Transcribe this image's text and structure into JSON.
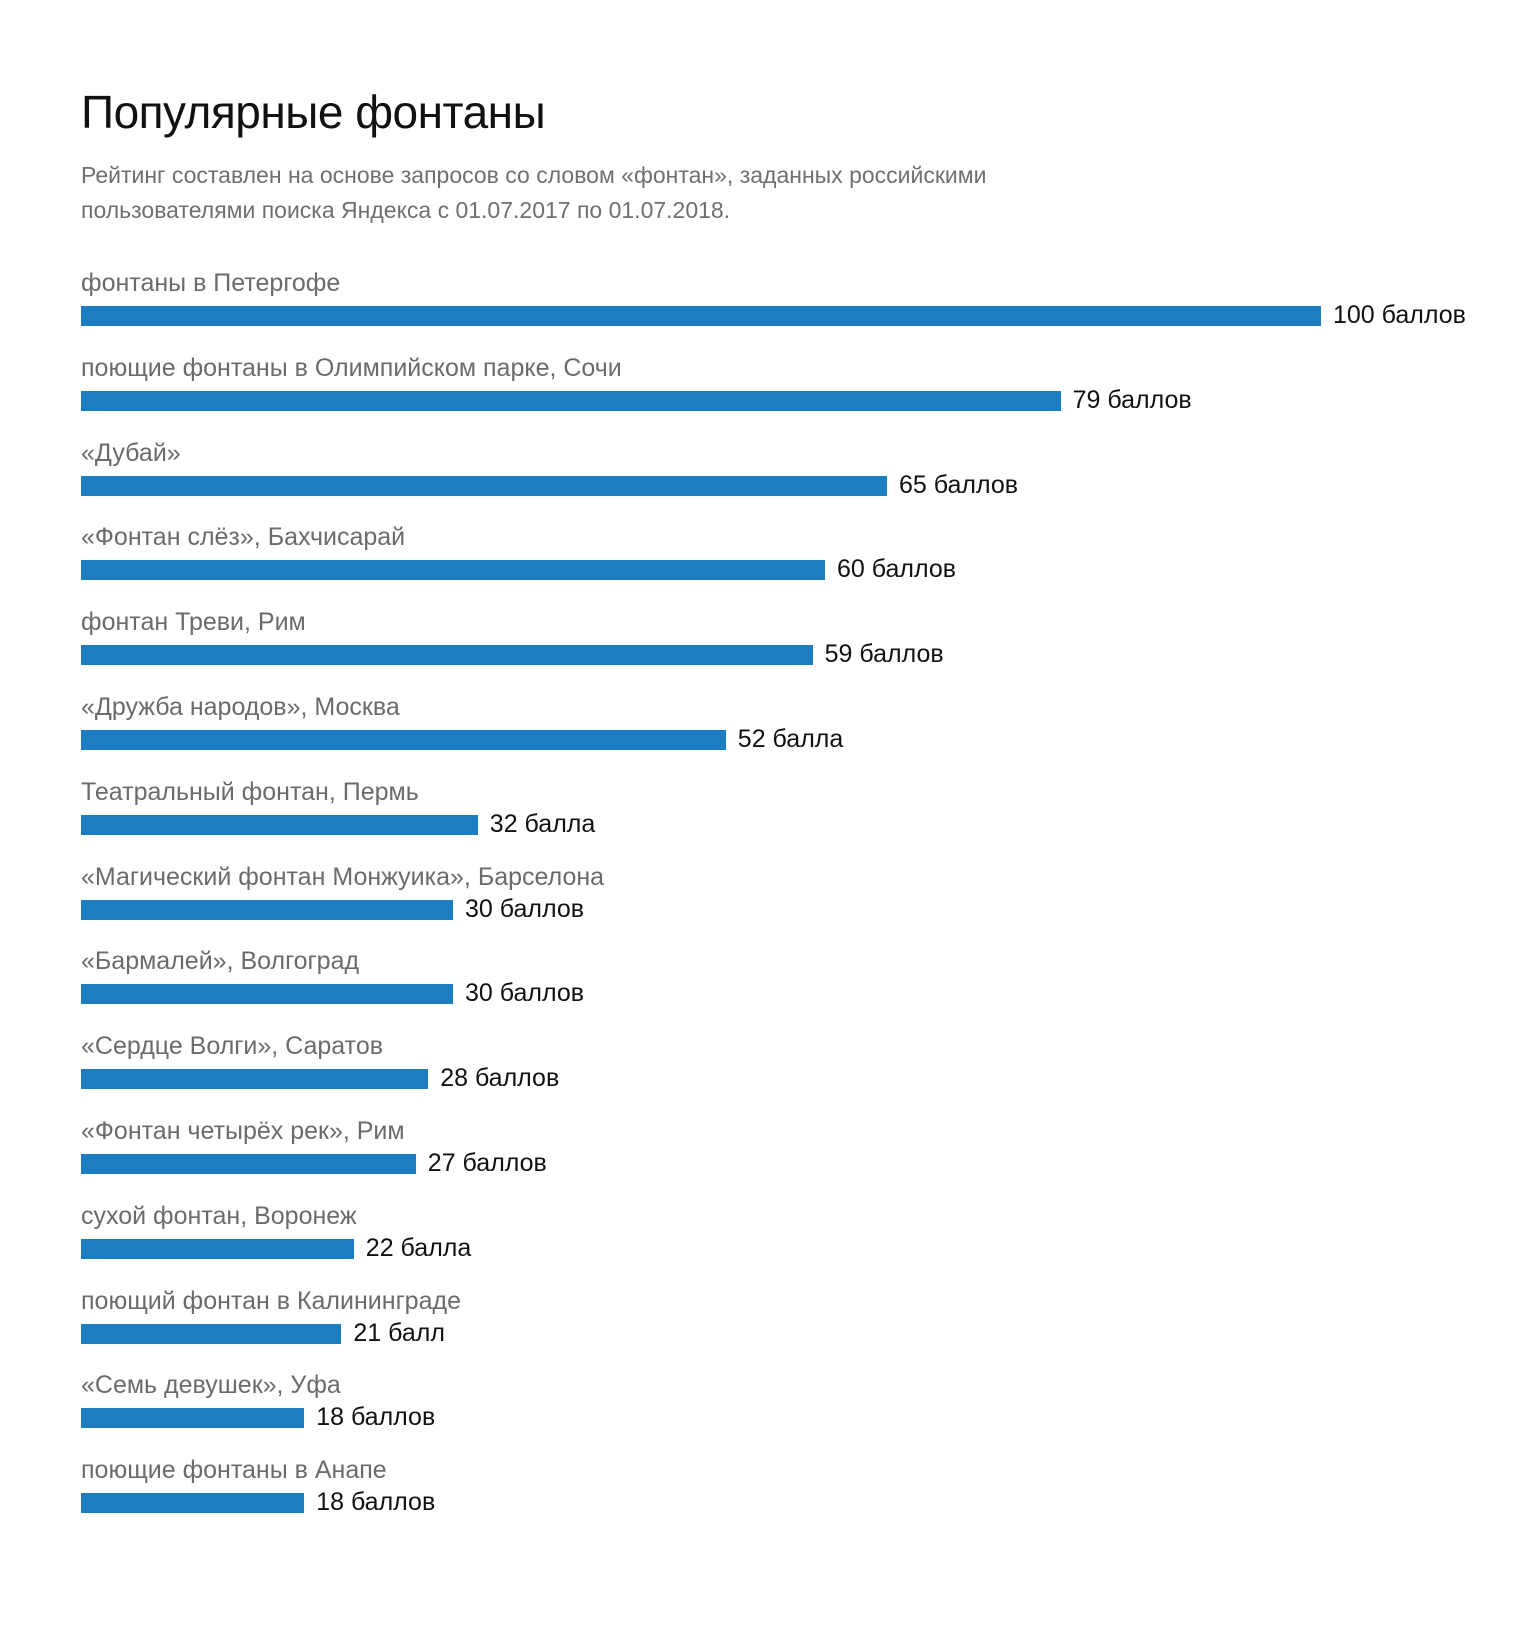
{
  "title": "Популярные фонтаны",
  "subtitle": {
    "line1": "Рейтинг составлен на основе запросов со словом «фонтан», заданных российскими",
    "line2": "пользователями поиска Яндекса с 01.07.2017 по 01.07.2018."
  },
  "colors": {
    "bar": "#1c7dc0",
    "label": "#6b6b6b",
    "value": "#111111",
    "subtitle": "#6f6f6f"
  },
  "chart_data": {
    "type": "bar",
    "orientation": "horizontal",
    "title": "Популярные фонтаны",
    "xlabel": "",
    "ylabel": "",
    "xlim": [
      0,
      100
    ],
    "grid": false,
    "legend": "none",
    "categories": [
      "фонтаны в Петергофе",
      "поющие фонтаны в Олимпийском парке, Сочи",
      "«Дубай»",
      "«Фонтан слёз», Бахчисарай",
      "фонтан Треви, Рим",
      "«Дружба народов», Москва",
      "Театральный фонтан, Пермь",
      "«Магический фонтан Монжуика», Барселона",
      "«Бармалей», Волгоград",
      "«Сердце Волги», Саратов",
      "«Фонтан четырёх рек», Рим",
      "сухой фонтан, Воронеж",
      "поющий фонтан в Калининграде",
      "«Семь девушек», Уфа",
      "поющие фонтаны в Анапе"
    ],
    "values": [
      100,
      79,
      65,
      60,
      59,
      52,
      32,
      30,
      30,
      28,
      27,
      22,
      21,
      18,
      18
    ],
    "value_labels": [
      "100 баллов",
      "79 баллов",
      "65 баллов",
      "60 баллов",
      "59 баллов",
      "52 балла",
      "32 балла",
      "30 баллов",
      "30 баллов",
      "28 баллов",
      "27 баллов",
      "22 балла",
      "21 балл",
      "18 баллов",
      "18 баллов"
    ]
  }
}
